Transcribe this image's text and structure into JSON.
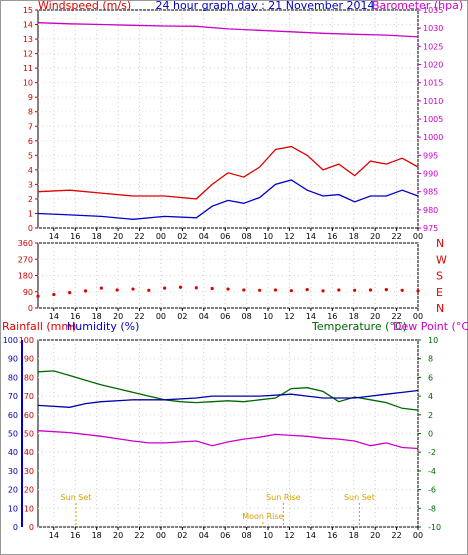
{
  "chart_data": [
    {
      "type": "line",
      "panel": "wind-pressure",
      "title": "24 hour graph day : 21 November 2014",
      "left_axis_label": "Windspeed (m/s)",
      "right_axis_label": "Barometer (hpa)",
      "left_ylim": [
        0,
        15
      ],
      "right_ylim": [
        975,
        1035
      ],
      "left_ticks": [
        "0",
        "1",
        "2",
        "3",
        "4",
        "5",
        "6",
        "7",
        "8",
        "9",
        "10",
        "11",
        "12",
        "13",
        "14",
        "15"
      ],
      "right_ticks": [
        "975",
        "980",
        "985",
        "990",
        "995",
        "1000",
        "1005",
        "1010",
        "1015",
        "1020",
        "1025",
        "1030",
        "1035"
      ],
      "x_ticks": [
        "14",
        "16",
        "18",
        "20",
        "22",
        "00",
        "02",
        "04",
        "06",
        "08",
        "10",
        "12",
        "14",
        "16",
        "18",
        "20",
        "22",
        "00"
      ],
      "series": [
        {
          "key": "gust",
          "color": "#e00000",
          "axis": "left",
          "x": [
            0,
            2,
            4,
            6,
            8,
            10,
            11,
            12,
            13,
            14,
            15,
            16,
            17,
            18,
            19,
            20,
            21,
            22,
            23,
            24
          ],
          "y": [
            2.5,
            2.6,
            2.4,
            2.2,
            2.2,
            2.0,
            3.0,
            3.8,
            3.5,
            4.2,
            5.4,
            5.6,
            5.0,
            4.0,
            4.4,
            3.6,
            4.6,
            4.4,
            4.8,
            4.2
          ]
        },
        {
          "key": "average",
          "color": "#0000cc",
          "axis": "left",
          "x": [
            0,
            2,
            4,
            6,
            8,
            10,
            11,
            12,
            13,
            14,
            15,
            16,
            17,
            18,
            19,
            20,
            21,
            22,
            23,
            24
          ],
          "y": [
            1.0,
            0.9,
            0.8,
            0.6,
            0.8,
            0.7,
            1.5,
            1.9,
            1.7,
            2.1,
            3.0,
            3.3,
            2.6,
            2.2,
            2.3,
            1.8,
            2.2,
            2.2,
            2.6,
            2.2
          ]
        },
        {
          "key": "barometer",
          "color": "#cc00cc",
          "axis": "right",
          "x": [
            0,
            2,
            4,
            6,
            8,
            10,
            12,
            14,
            16,
            18,
            20,
            22,
            24
          ],
          "y": [
            1031.5,
            1031.2,
            1031.0,
            1030.8,
            1030.6,
            1030.5,
            1029.8,
            1029.4,
            1029.0,
            1028.6,
            1028.3,
            1028.1,
            1027.6
          ]
        }
      ]
    },
    {
      "type": "scatter",
      "panel": "wind-direction",
      "right_labels": [
        "N",
        "W",
        "S",
        "E",
        "N"
      ],
      "ylim": [
        0,
        360
      ],
      "y_ticks": [
        "0",
        "90",
        "180",
        "270",
        "360"
      ],
      "x_ticks": [
        "14",
        "16",
        "18",
        "20",
        "22",
        "00",
        "02",
        "04",
        "06",
        "08",
        "10",
        "12",
        "14",
        "16",
        "18",
        "20",
        "22",
        "00"
      ],
      "series": [
        {
          "key": "direction",
          "color": "#e00000",
          "x": [
            0,
            1,
            2,
            3,
            4,
            5,
            6,
            7,
            8,
            9,
            10,
            11,
            12,
            13,
            14,
            15,
            16,
            17,
            18,
            19,
            20,
            21,
            22,
            23,
            24
          ],
          "y": [
            65,
            75,
            85,
            95,
            110,
            100,
            105,
            98,
            110,
            115,
            112,
            108,
            105,
            100,
            98,
            100,
            96,
            102,
            95,
            100,
            98,
            100,
            102,
            98,
            95
          ]
        }
      ]
    },
    {
      "type": "line",
      "panel": "rain-humidity-temperature",
      "labels": {
        "rainfall": "Rainfall (mm)",
        "humidity": "Humidity (%)",
        "temperature": "Temperature (°C)",
        "dewpoint": "Dew Point (°C)"
      },
      "left_ylim": [
        0,
        100
      ],
      "right_ylim": [
        -10,
        10
      ],
      "left_ticks": [
        "0",
        "10",
        "20",
        "30",
        "40",
        "50",
        "60",
        "70",
        "80",
        "90",
        "100"
      ],
      "right_ticks": [
        "-10",
        "-8",
        "-6",
        "-4",
        "-2",
        "0",
        "2",
        "4",
        "6",
        "8",
        "10"
      ],
      "x_ticks": [
        "14",
        "16",
        "18",
        "20",
        "22",
        "00",
        "02",
        "04",
        "06",
        "08",
        "10",
        "12",
        "14",
        "16",
        "18",
        "20",
        "22",
        "00"
      ],
      "annotations": [
        {
          "text": "Sun Set",
          "hour": 2.4,
          "row": 1
        },
        {
          "text": "Sun Rise",
          "hour": 15.5,
          "row": 1
        },
        {
          "text": "Sun Set",
          "hour": 20.3,
          "row": 1
        },
        {
          "text": "Moon Rise",
          "hour": 14.2,
          "row": 2
        }
      ],
      "series": [
        {
          "key": "humidity",
          "color": "#0000aa",
          "axis": "left",
          "x": [
            0,
            2,
            3,
            4,
            6,
            8,
            10,
            11,
            12,
            14,
            16,
            17,
            18,
            20,
            21,
            22,
            23,
            24
          ],
          "y": [
            65,
            64,
            66,
            67,
            68,
            68,
            69,
            70,
            70,
            70,
            71,
            70,
            69,
            69,
            70,
            71,
            72,
            73
          ]
        },
        {
          "key": "temperature",
          "color": "#006600",
          "axis": "right",
          "x": [
            0,
            1,
            2,
            3,
            4,
            5,
            6,
            7,
            8,
            9,
            10,
            11,
            12,
            13,
            14,
            15,
            16,
            17,
            18,
            19,
            20,
            21,
            22,
            23,
            24
          ],
          "y": [
            6.6,
            6.7,
            6.2,
            5.7,
            5.2,
            4.8,
            4.4,
            4.0,
            3.6,
            3.4,
            3.3,
            3.4,
            3.5,
            3.4,
            3.6,
            3.8,
            4.8,
            4.9,
            4.5,
            3.4,
            3.9,
            3.6,
            3.3,
            2.7,
            2.5
          ]
        },
        {
          "key": "dewpoint",
          "color": "#cc00cc",
          "axis": "right",
          "x": [
            0,
            2,
            4,
            6,
            7,
            8,
            10,
            11,
            12,
            13,
            14,
            15,
            16,
            17,
            18,
            19,
            20,
            21,
            22,
            23,
            24
          ],
          "y": [
            0.3,
            0.1,
            -0.3,
            -0.8,
            -1.0,
            -1.0,
            -0.8,
            -1.3,
            -0.9,
            -0.6,
            -0.4,
            -0.1,
            -0.2,
            -0.3,
            -0.5,
            -0.6,
            -0.8,
            -1.3,
            -1.0,
            -1.5,
            -1.6
          ]
        }
      ]
    }
  ]
}
